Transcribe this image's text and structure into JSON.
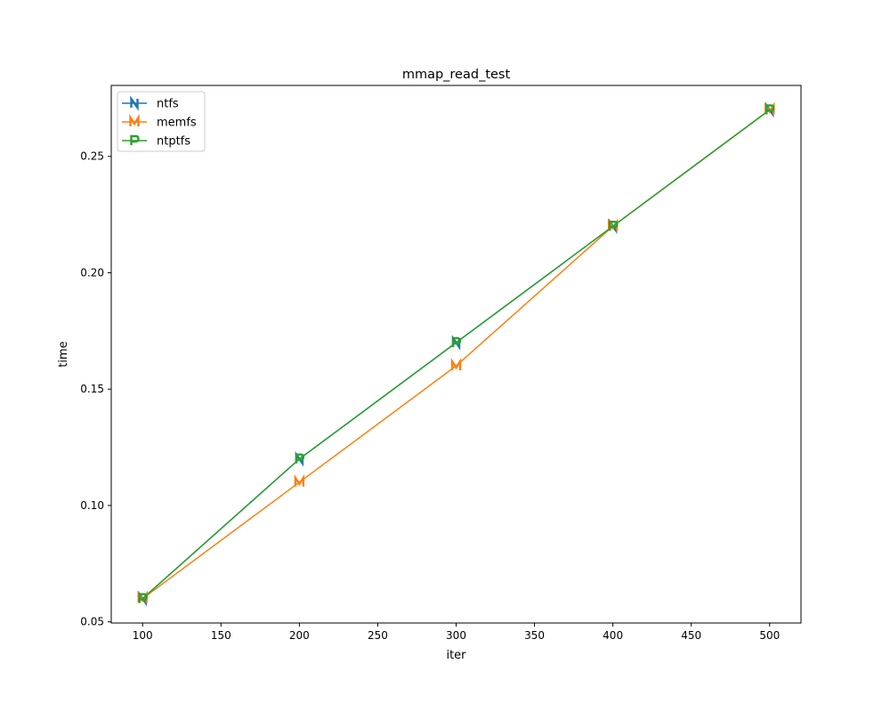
{
  "chart_data": {
    "type": "line",
    "title": "mmap_read_test",
    "xlabel": "iter",
    "ylabel": "time",
    "x": [
      100,
      200,
      300,
      400,
      500
    ],
    "xlim": [
      80,
      520
    ],
    "ylim": [
      0.0495,
      0.2805
    ],
    "xticks": [
      100,
      150,
      200,
      250,
      300,
      350,
      400,
      450,
      500
    ],
    "xtick_labels": [
      "100",
      "150",
      "200",
      "250",
      "300",
      "350",
      "400",
      "450",
      "500"
    ],
    "yticks": [
      0.05,
      0.1,
      0.15,
      0.2,
      0.25
    ],
    "ytick_labels": [
      "0.05",
      "0.10",
      "0.15",
      "0.20",
      "0.25"
    ],
    "grid": false,
    "legend_position": "top-left",
    "series": [
      {
        "name": "ntfs",
        "values": [
          0.06,
          0.12,
          0.17,
          0.22,
          0.27
        ],
        "color": "#1f77b4",
        "marker": "N"
      },
      {
        "name": "memfs",
        "values": [
          0.06,
          0.11,
          0.16,
          0.22,
          0.27
        ],
        "color": "#ff7f0e",
        "marker": "M"
      },
      {
        "name": "ntptfs",
        "values": [
          0.06,
          0.12,
          0.17,
          0.22,
          0.27
        ],
        "color": "#2ca02c",
        "marker": "P"
      }
    ]
  }
}
